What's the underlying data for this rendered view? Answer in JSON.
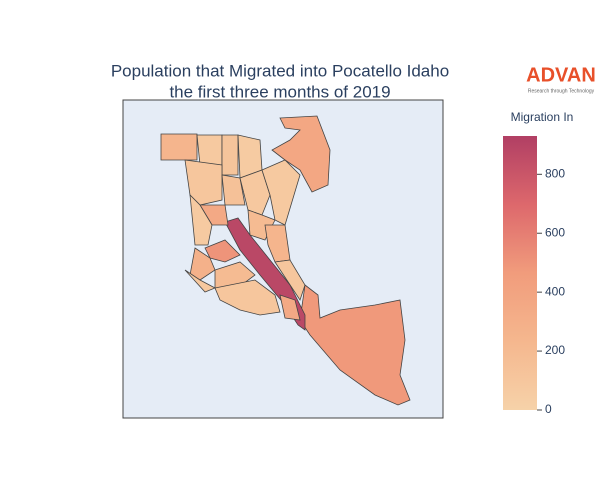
{
  "chart_data": {
    "type": "choropleth",
    "title": [
      "Population that Migrated into Pocatello Idaho",
      "the first three months of 2019"
    ],
    "values": [
      250,
      370,
      480,
      880,
      80,
      120,
      60,
      100,
      150,
      90,
      350,
      70,
      200,
      250,
      500,
      280,
      200,
      100,
      100,
      350,
      80,
      90
    ],
    "colorbar": {
      "title": "Migration In",
      "range": [
        0,
        930
      ],
      "ticks": [
        0,
        200,
        400,
        600,
        800
      ],
      "colors": [
        "#f6d2a9",
        "#f5b78e",
        "#f19c7c",
        "#dd686c",
        "#b13f64"
      ]
    },
    "logo": {
      "name": "ADVAN",
      "tagline": "Research through Technology"
    }
  }
}
